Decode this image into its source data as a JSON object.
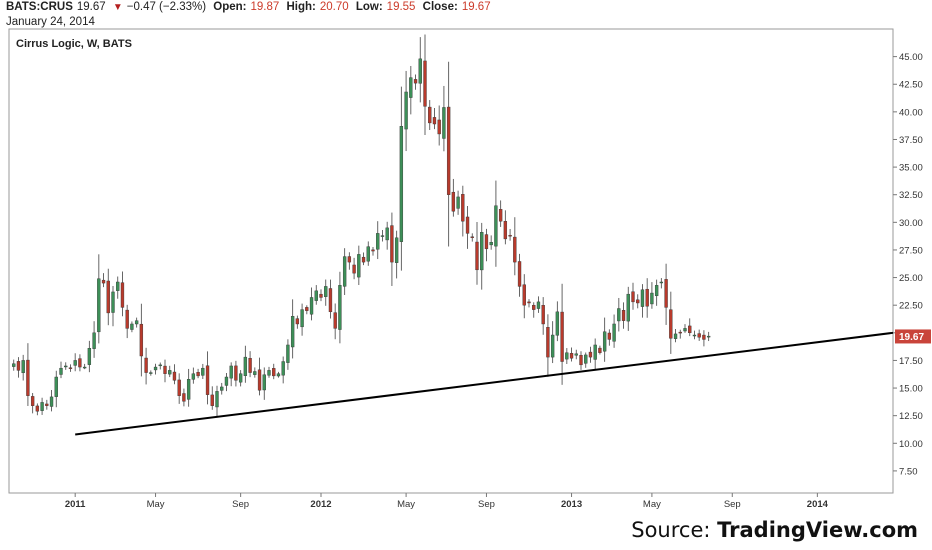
{
  "header": {
    "symbol": "BATS:CRUS",
    "last": "19.67",
    "change_arrow": "▼",
    "change": "−0.47 (−2.33%)",
    "open_label": "Open:",
    "open": "19.87",
    "high_label": "High:",
    "high": "20.70",
    "low_label": "Low:",
    "low": "19.55",
    "close_label": "Close:",
    "close": "19.67",
    "date": "January 24, 2014"
  },
  "source": {
    "prefix": "Source: ",
    "brand": "TradingView.com"
  },
  "chart_data": {
    "type": "candlestick",
    "title": "Cirrus Logic, W, BATS",
    "interval": "W",
    "price_axis": {
      "ylim": [
        5.5,
        47.5
      ],
      "ticks": [
        "7.50",
        "10.00",
        "12.50",
        "15.00",
        "17.50",
        "20.00",
        "22.50",
        "25.00",
        "27.50",
        "30.00",
        "32.50",
        "35.00",
        "37.50",
        "40.00",
        "42.50",
        "45.00"
      ],
      "side": "right"
    },
    "time_axis": {
      "xlim": [
        "2010-09-27",
        "2014-04-28"
      ],
      "ticks": [
        {
          "label": "2011",
          "date": "2011-01-03",
          "bold": true
        },
        {
          "label": "May",
          "date": "2011-05-02",
          "bold": false
        },
        {
          "label": "Sep",
          "date": "2011-09-05",
          "bold": false
        },
        {
          "label": "2012",
          "date": "2012-01-02",
          "bold": true
        },
        {
          "label": "May",
          "date": "2012-05-07",
          "bold": false
        },
        {
          "label": "Sep",
          "date": "2012-09-03",
          "bold": false
        },
        {
          "label": "2013",
          "date": "2013-01-07",
          "bold": true
        },
        {
          "label": "May",
          "date": "2013-05-06",
          "bold": false
        },
        {
          "label": "Sep",
          "date": "2013-09-02",
          "bold": false
        },
        {
          "label": "2014",
          "date": "2014-01-06",
          "bold": true
        }
      ]
    },
    "last_price_label": "19.67",
    "colors": {
      "up": "#3d8f58",
      "down": "#b83a2c",
      "trendline": "#000000",
      "last_label": "#c9443a"
    },
    "trendline": {
      "start": {
        "date": "2011-01-03",
        "price": 10.8
      },
      "end": {
        "date": "2014-04-28",
        "price": 20.0
      }
    },
    "closes": [
      17.2,
      16.6,
      17.5,
      14.3,
      13.4,
      12.9,
      13.7,
      13.4,
      14.2,
      16.0,
      16.8,
      17.0,
      16.8,
      17.5,
      16.9,
      16.9,
      18.6,
      20.0,
      24.9,
      24.5,
      21.8,
      23.7,
      24.6,
      22.3,
      20.4,
      20.8,
      21.1,
      17.9,
      16.4,
      16.4,
      16.9,
      17.1,
      16.3,
      16.6,
      15.7,
      14.3,
      13.8,
      15.8,
      16.3,
      16.1,
      16.8,
      14.4,
      13.4,
      14.7,
      15.1,
      16.0,
      17.0,
      15.7,
      16.3,
      17.8,
      16.4,
      16.5,
      14.8,
      16.2,
      16.6,
      16.1,
      16.3,
      17.4,
      18.9,
      21.5,
      20.8,
      22.1,
      22.0,
      23.2,
      23.8,
      23.2,
      24.2,
      21.9,
      20.4,
      24.3,
      26.9,
      26.4,
      25.4,
      27.1,
      26.4,
      27.8,
      27.4,
      29.0,
      28.8,
      29.5,
      26.4,
      28.6,
      38.7,
      41.8,
      43.1,
      42.6,
      44.8,
      40.5,
      39.0,
      38.9,
      38.0,
      40.4,
      32.5,
      31.0,
      32.3,
      30.1,
      29.0,
      28.6,
      25.7,
      29.1,
      27.6,
      28.2,
      31.5,
      30.1,
      28.5,
      28.8,
      26.4,
      24.2,
      22.5,
      22.7,
      22.1,
      22.8,
      20.8,
      17.8,
      19.8,
      21.9,
      17.4,
      18.2,
      17.7,
      18.1,
      17.1,
      18.0,
      17.8,
      18.9,
      18.2,
      20.1,
      19.4,
      20.8,
      22.2,
      21.1,
      23.5,
      22.8,
      22.7,
      23.9,
      22.4,
      23.6,
      24.3,
      24.6,
      22.3,
      19.5,
      19.9,
      20.0,
      20.4,
      20.0,
      19.8,
      19.6,
      19.4,
      19.7
    ]
  }
}
